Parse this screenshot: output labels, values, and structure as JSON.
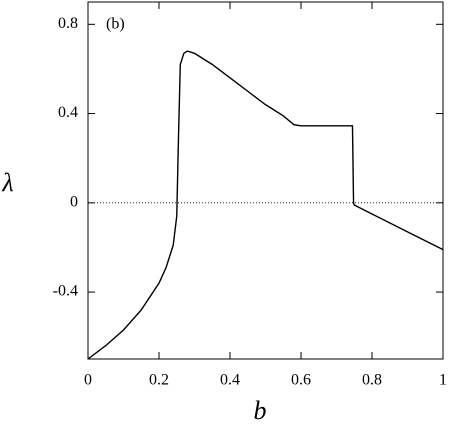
{
  "chart_data": {
    "type": "line",
    "annotation": "(b)",
    "x_label": "b",
    "y_label": "λ",
    "xlim": [
      0,
      1
    ],
    "ylim": [
      -0.7,
      0.9
    ],
    "xticks": [
      0,
      0.2,
      0.4,
      0.6,
      0.8,
      1
    ],
    "yticks": [
      -0.4,
      0,
      0.4,
      0.8
    ],
    "reference_line": 0,
    "series": [
      {
        "color": "#000000",
        "x": [
          0,
          0.05,
          0.1,
          0.15,
          0.2,
          0.22,
          0.24,
          0.25,
          0.255,
          0.26,
          0.27,
          0.28,
          0.3,
          0.35,
          0.4,
          0.45,
          0.5,
          0.55,
          0.58,
          0.6,
          0.65,
          0.7,
          0.745,
          0.748,
          0.75,
          0.8,
          0.9,
          1.0
        ],
        "values": [
          -0.7,
          -0.64,
          -0.57,
          -0.48,
          -0.36,
          -0.29,
          -0.19,
          -0.06,
          0.3,
          0.62,
          0.67,
          0.68,
          0.67,
          0.62,
          0.56,
          0.5,
          0.44,
          0.39,
          0.35,
          0.345,
          0.345,
          0.345,
          0.345,
          0.0,
          -0.01,
          -0.05,
          -0.13,
          -0.21
        ]
      }
    ]
  }
}
